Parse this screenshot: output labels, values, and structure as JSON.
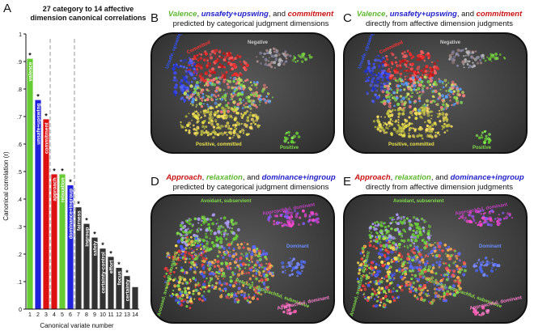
{
  "panel_letters": {
    "a": "A",
    "b": "B",
    "c": "C",
    "d": "D",
    "e": "E"
  },
  "chart_data": {
    "type": "bar",
    "title": "27 category to 14 affective dimension canonical correlations",
    "xlabel": "Canonical variate number",
    "ylabel": "Canonical correlation (r)",
    "ylim": [
      0,
      1
    ],
    "yticks": [
      "0",
      ".1",
      ".2",
      ".3",
      ".4",
      ".5",
      ".6",
      ".7",
      ".8",
      ".9",
      "1"
    ],
    "categories": [
      "1",
      "2",
      "3",
      "4",
      "5",
      "6",
      "7",
      "8",
      "9",
      "10",
      "11",
      "12",
      "13",
      "14"
    ],
    "values": [
      0.91,
      0.76,
      0.69,
      0.49,
      0.49,
      0.45,
      0.37,
      0.31,
      0.26,
      0.22,
      0.19,
      0.15,
      0.12,
      0.08
    ],
    "bar_labels": [
      "valence",
      "unsafe+upswing",
      "commitment",
      "approach",
      "relaxation",
      "dominance+ingroup",
      "fairness",
      "ingroup",
      "safety",
      "certainty-control",
      "effort",
      "focus",
      "certainty",
      ""
    ],
    "significant": [
      true,
      true,
      true,
      true,
      true,
      true,
      true,
      true,
      true,
      true,
      true,
      true,
      true,
      false
    ],
    "colors": [
      "#66cc33",
      "#2222dd",
      "#dd1111",
      "#dd1111",
      "#66cc33",
      "#2222dd",
      "#333333",
      "#333333",
      "#333333",
      "#333333",
      "#333333",
      "#333333",
      "#333333",
      "#333333"
    ],
    "dividers_after": [
      3,
      6
    ],
    "star": "*"
  },
  "panels": {
    "b": {
      "t1": "Valence",
      "c1": ", ",
      "t2": "unsafety+upswing",
      "c2": ", and ",
      "t3": "commitment",
      "sub": "predicted by categorical judgment dimensions"
    },
    "c": {
      "t1": "Valence",
      "c1": ", ",
      "t2": "unsafety+upswing",
      "c2": ", and ",
      "t3": "commitment",
      "sub": "directly from affective dimension judgments"
    },
    "d": {
      "t1": "Approach",
      "c1": ", ",
      "t2": "relaxation",
      "c2": ", and ",
      "t3": "dominance+ingroup",
      "sub": "predicted by categorical judgment dimensions"
    },
    "e": {
      "t1": "Approach",
      "c1": ", ",
      "t2": "relaxation",
      "c2": ", and ",
      "t3": "dominance+ingroup",
      "sub": "directly from affective dimension judgments"
    }
  },
  "regions_top": {
    "negative": "Negative",
    "unsafe": "Unsafe, upswing",
    "committed": "Committed",
    "pos_committed": "Positive, committed",
    "positive": "Positive"
  },
  "regions_bottom": {
    "avoidant": "Avoidant, subservient",
    "approach_dominant": "Approachful, dominant",
    "aroused": "Aroused, avoidant, dominant",
    "dominant": "Dominant",
    "relaxed": "Relaxed, approachful, submissive",
    "approachful": "Approachful, dominant"
  }
}
